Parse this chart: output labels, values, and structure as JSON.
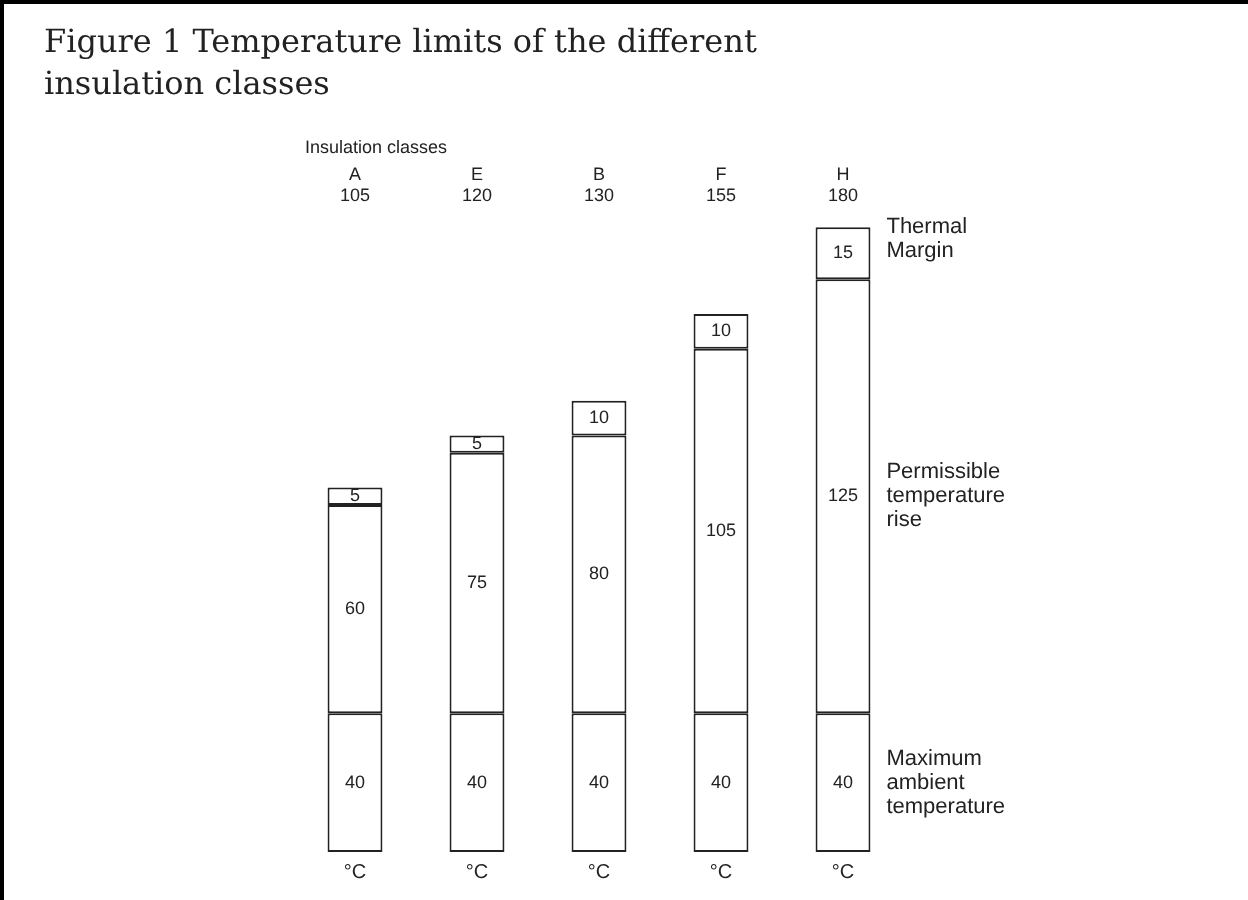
{
  "chart_data": {
    "type": "bar",
    "title": "Figure 1 Temperature limits of the different insulation classes",
    "xlabel": "Insulation classes",
    "categories": [
      "A\n105",
      "E\n120",
      "B\n130",
      "F\n155",
      "H\n180"
    ],
    "stacked": true,
    "data_labels": true,
    "legend": false,
    "series": [
      {
        "name": "Maximum ambient temperature",
        "color": "#ffffff",
        "values": [
          40,
          40,
          40,
          40,
          40
        ]
      },
      {
        "name": "Permissible temperature rise",
        "color": "#ffffff",
        "values": [
          60,
          75,
          80,
          105,
          125
        ]
      },
      {
        "name": "Thermal Margin",
        "color": "#ffffff",
        "values": [
          5,
          5,
          10,
          10,
          15
        ]
      }
    ],
    "annotations": [
      "°C",
      "°C",
      "°C",
      "°C",
      "°C"
    ]
  }
}
